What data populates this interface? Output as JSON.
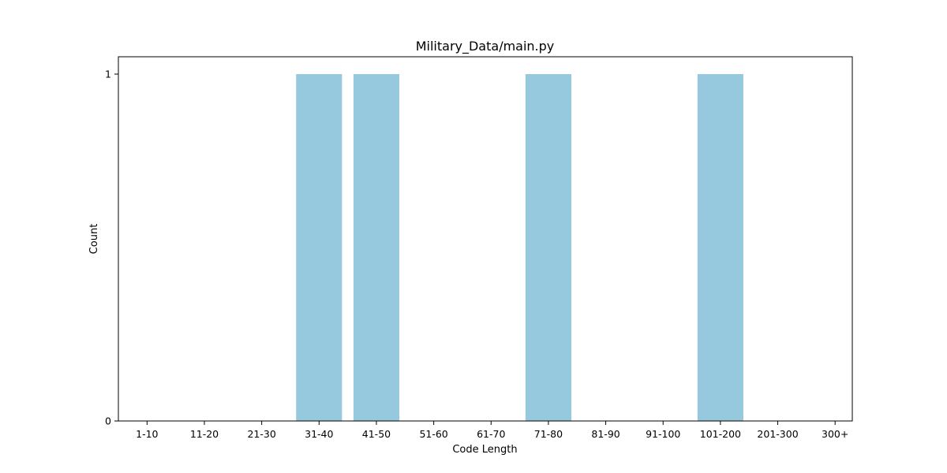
{
  "chart_data": {
    "type": "bar",
    "title": "Military_Data/main.py",
    "xlabel": "Code Length",
    "ylabel": "Count",
    "categories": [
      "1-10",
      "11-20",
      "21-30",
      "31-40",
      "41-50",
      "51-60",
      "61-70",
      "71-80",
      "81-90",
      "91-100",
      "101-200",
      "201-300",
      "300+"
    ],
    "values": [
      0,
      0,
      0,
      1,
      1,
      0,
      0,
      1,
      0,
      0,
      1,
      0,
      0
    ],
    "ylim": [
      0,
      1.05
    ],
    "yticks": [
      0,
      1
    ],
    "grid": false,
    "legend": "none",
    "bar_color": "#96c9dd"
  }
}
